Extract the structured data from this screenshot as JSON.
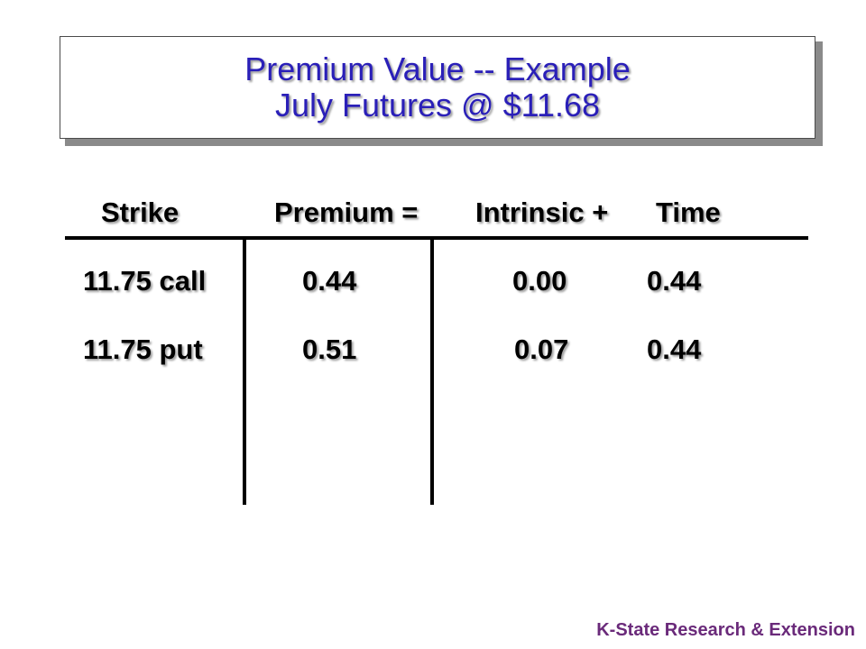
{
  "title": {
    "line1": "Premium Value -- Example",
    "line2": "July Futures @ $11.68"
  },
  "table": {
    "headers": {
      "strike": "Strike",
      "premium": "Premium =",
      "intrinsic": "Intrinsic +",
      "time": "Time"
    },
    "rows": [
      {
        "strike": "11.75 call",
        "premium": "0.44",
        "intrinsic": "0.00",
        "time": "0.44"
      },
      {
        "strike": "11.75 put",
        "premium": "0.51",
        "intrinsic": "0.07",
        "time": "0.44"
      }
    ]
  },
  "footer": "K-State Research & Extension",
  "colors": {
    "title": "#2a1fb8",
    "footer": "#6a2a7a",
    "text": "#000000"
  }
}
